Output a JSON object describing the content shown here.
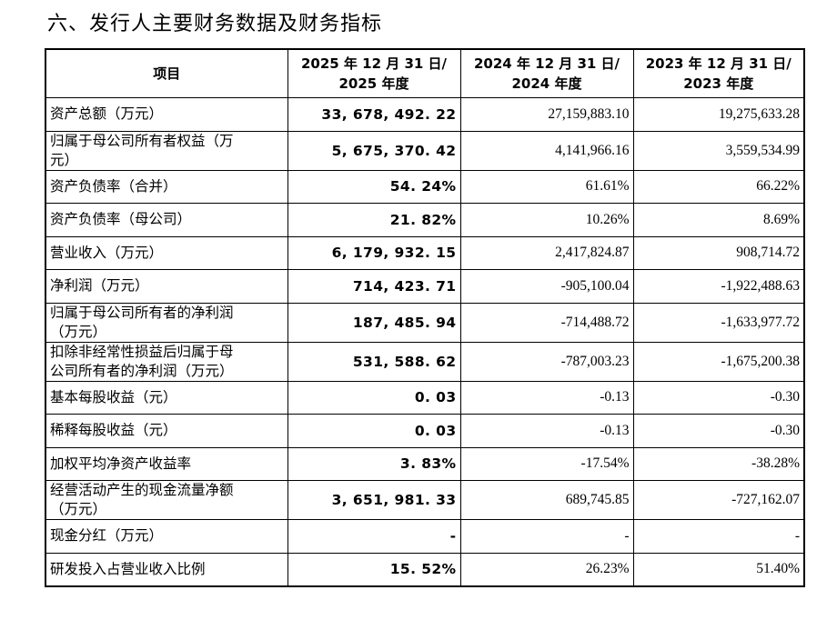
{
  "title": "六、发行人主要财务数据及财务指标",
  "table": {
    "headers": [
      {
        "lines": [
          "项目"
        ]
      },
      {
        "lines": [
          "2025 年 12 月 31 日/",
          "2025 年度"
        ]
      },
      {
        "lines": [
          "2024 年 12 月 31 日/",
          "2024 年度"
        ]
      },
      {
        "lines": [
          "2023 年 12 月 31 日/",
          "2023 年度"
        ]
      }
    ],
    "rows": [
      {
        "item": [
          "资产总额（万元）"
        ],
        "v2025": "33, 678, 492. 22",
        "v2024": "27,159,883.10",
        "v2023": "19,275,633.28"
      },
      {
        "item": [
          "归属于母公司所有者权益（万",
          "元）"
        ],
        "v2025": "5, 675, 370. 42",
        "v2024": "4,141,966.16",
        "v2023": "3,559,534.99"
      },
      {
        "item": [
          "资产负债率（合并）"
        ],
        "v2025": "54. 24%",
        "v2024": "61.61%",
        "v2023": "66.22%"
      },
      {
        "item": [
          "资产负债率（母公司）"
        ],
        "v2025": "21. 82%",
        "v2024": "10.26%",
        "v2023": "8.69%"
      },
      {
        "item": [
          "营业收入（万元）"
        ],
        "v2025": "6, 179, 932. 15",
        "v2024": "2,417,824.87",
        "v2023": "908,714.72"
      },
      {
        "item": [
          "净利润（万元）"
        ],
        "v2025": "714, 423. 71",
        "v2024": "-905,100.04",
        "v2023": "-1,922,488.63"
      },
      {
        "item": [
          "归属于母公司所有者的净利润",
          "（万元）"
        ],
        "v2025": "187, 485. 94",
        "v2024": "-714,488.72",
        "v2023": "-1,633,977.72"
      },
      {
        "item": [
          "扣除非经常性损益后归属于母",
          "公司所有者的净利润（万元）"
        ],
        "v2025": "531, 588. 62",
        "v2024": "-787,003.23",
        "v2023": "-1,675,200.38"
      },
      {
        "item": [
          "基本每股收益（元）"
        ],
        "v2025": "0. 03",
        "v2024": "-0.13",
        "v2023": "-0.30"
      },
      {
        "item": [
          "稀释每股收益（元）"
        ],
        "v2025": "0. 03",
        "v2024": "-0.13",
        "v2023": "-0.30"
      },
      {
        "item": [
          "加权平均净资产收益率"
        ],
        "v2025": "3. 83%",
        "v2024": "-17.54%",
        "v2023": "-38.28%"
      },
      {
        "item": [
          "经营活动产生的现金流量净额",
          "（万元）"
        ],
        "v2025": "3, 651, 981. 33",
        "v2024": "689,745.85",
        "v2023": "-727,162.07"
      },
      {
        "item": [
          "现金分红（万元）"
        ],
        "v2025": "-",
        "v2024": "-",
        "v2023": "-"
      },
      {
        "item": [
          "研发投入占营业收入比例"
        ],
        "v2025": "15. 52%",
        "v2024": "26.23%",
        "v2023": "51.40%"
      }
    ]
  }
}
